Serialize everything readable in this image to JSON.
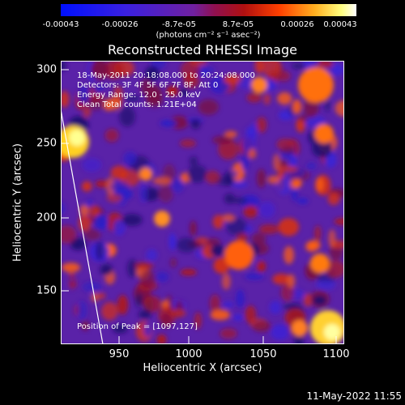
{
  "colorbar": {
    "ticks": [
      "-0.00043",
      "-0.00026",
      "-8.7e-05",
      "8.7e-05",
      "0.00026",
      "0.00043"
    ],
    "units": "(photons cm⁻² s⁻¹ asec⁻²)"
  },
  "title": "Reconstructed RHESSI Image",
  "info": {
    "time": "18-May-2011 20:18:08.000 to 20:24:08.000",
    "detectors": "Detectors: 3F 4F 5F 6F 7F 8F, Att 0",
    "energy": "Energy Range: 12.0 - 25.0 keV",
    "clean": "Clean    Total counts: 1.21E+04",
    "peak": "Position of Peak = [1097,127]"
  },
  "axes": {
    "xlabel": "Heliocentric X (arcsec)",
    "ylabel": "Heliocentric Y (arcsec)",
    "xticks": [
      "950",
      "1000",
      "1050",
      "1100"
    ],
    "yticks": [
      "150",
      "200",
      "250",
      "300"
    ],
    "xlim": [
      910,
      1100
    ],
    "ylim": [
      112,
      307
    ]
  },
  "footer": "11-May-2022 11:55",
  "colors": {
    "low": "#0000ff",
    "mid": "#6a2ab0",
    "high": "#ffffff"
  }
}
